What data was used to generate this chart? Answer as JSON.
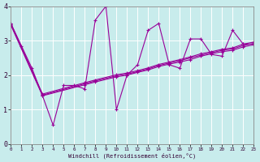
{
  "bg_color": "#c8ecec",
  "line_color": "#990099",
  "xlim": [
    0,
    23
  ],
  "ylim": [
    0,
    4
  ],
  "xtick_vals": [
    0,
    1,
    2,
    3,
    4,
    5,
    6,
    7,
    8,
    9,
    10,
    11,
    12,
    13,
    14,
    15,
    16,
    17,
    18,
    19,
    20,
    21,
    22,
    23
  ],
  "ytick_vals": [
    0,
    1,
    2,
    3,
    4
  ],
  "xlabel": "Windchill (Refroidissement éolien,°C)",
  "main_x": [
    0,
    1,
    2,
    3,
    4,
    5,
    6,
    7,
    8,
    9,
    10,
    11,
    12,
    13,
    14,
    15,
    16,
    17,
    18,
    19,
    20,
    21,
    22,
    23
  ],
  "main_y": [
    3.5,
    2.85,
    2.2,
    1.4,
    0.55,
    1.7,
    1.7,
    1.6,
    3.6,
    4.0,
    1.0,
    2.0,
    2.3,
    3.3,
    3.5,
    2.3,
    2.2,
    3.05,
    3.05,
    2.6,
    2.55,
    3.3,
    2.9,
    2.9
  ],
  "trend1_x": [
    0,
    3,
    7,
    8,
    10,
    11,
    12,
    13,
    14,
    15,
    16,
    17,
    18,
    19,
    20,
    21,
    22,
    23
  ],
  "trend1_y": [
    3.45,
    1.4,
    1.72,
    1.8,
    1.95,
    2.0,
    2.08,
    2.15,
    2.25,
    2.32,
    2.38,
    2.45,
    2.55,
    2.62,
    2.68,
    2.72,
    2.82,
    2.88
  ],
  "trend2_x": [
    0,
    3,
    7,
    8,
    10,
    11,
    12,
    13,
    14,
    15,
    16,
    17,
    18,
    19,
    20,
    21,
    22,
    23
  ],
  "trend2_y": [
    3.48,
    1.42,
    1.75,
    1.83,
    1.98,
    2.03,
    2.1,
    2.18,
    2.28,
    2.35,
    2.42,
    2.5,
    2.58,
    2.65,
    2.72,
    2.76,
    2.86,
    2.92
  ],
  "trend3_x": [
    0,
    3,
    7,
    8,
    10,
    11,
    12,
    13,
    14,
    15,
    16,
    17,
    18,
    19,
    20,
    21,
    22,
    23
  ],
  "trend3_y": [
    3.5,
    1.45,
    1.78,
    1.86,
    2.01,
    2.06,
    2.13,
    2.21,
    2.31,
    2.38,
    2.45,
    2.53,
    2.62,
    2.68,
    2.75,
    2.79,
    2.9,
    2.96
  ]
}
